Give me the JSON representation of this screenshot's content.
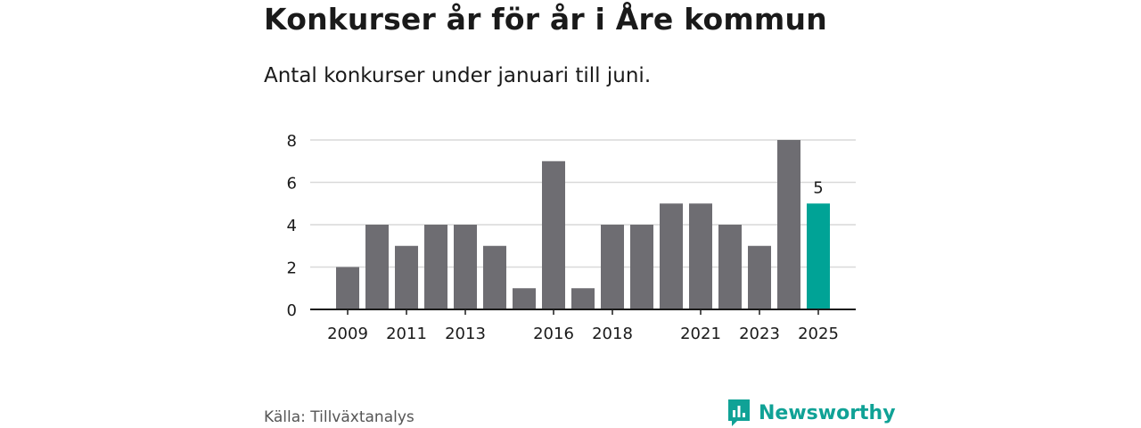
{
  "title": "Konkurser år för år i Åre kommun",
  "subtitle": "Antal konkurser under januari till juni.",
  "source": "Källa: Tillväxtanalys",
  "brand": {
    "name": "Newsworthy",
    "color": "#10a296",
    "icon": "newsworthy-logo-icon"
  },
  "colors": {
    "bar": "#6e6d72",
    "highlight": "#00a396",
    "grid": "#d9d9d9",
    "axis": "#1a1a1a"
  },
  "chart_data": {
    "type": "bar",
    "categories": [
      "2009",
      "2010",
      "2011",
      "2012",
      "2013",
      "2014",
      "2015",
      "2016",
      "2017",
      "2018",
      "2019",
      "2020",
      "2021",
      "2022",
      "2023",
      "2024",
      "2025"
    ],
    "values": [
      2,
      4,
      3,
      4,
      4,
      3,
      1,
      7,
      1,
      4,
      4,
      5,
      5,
      4,
      3,
      8,
      5
    ],
    "highlight_index": 16,
    "data_labels": [
      {
        "index": 16,
        "text": "5"
      }
    ],
    "x_tick_labels": [
      "2009",
      "2011",
      "2013",
      "2016",
      "2018",
      "2021",
      "2023",
      "2025"
    ],
    "y_ticks": [
      0,
      2,
      4,
      6,
      8
    ],
    "ylim": [
      0,
      8
    ],
    "grid": true,
    "title": "Konkurser år för år i Åre kommun",
    "subtitle": "Antal konkurser under januari till juni.",
    "xlabel": "",
    "ylabel": ""
  }
}
